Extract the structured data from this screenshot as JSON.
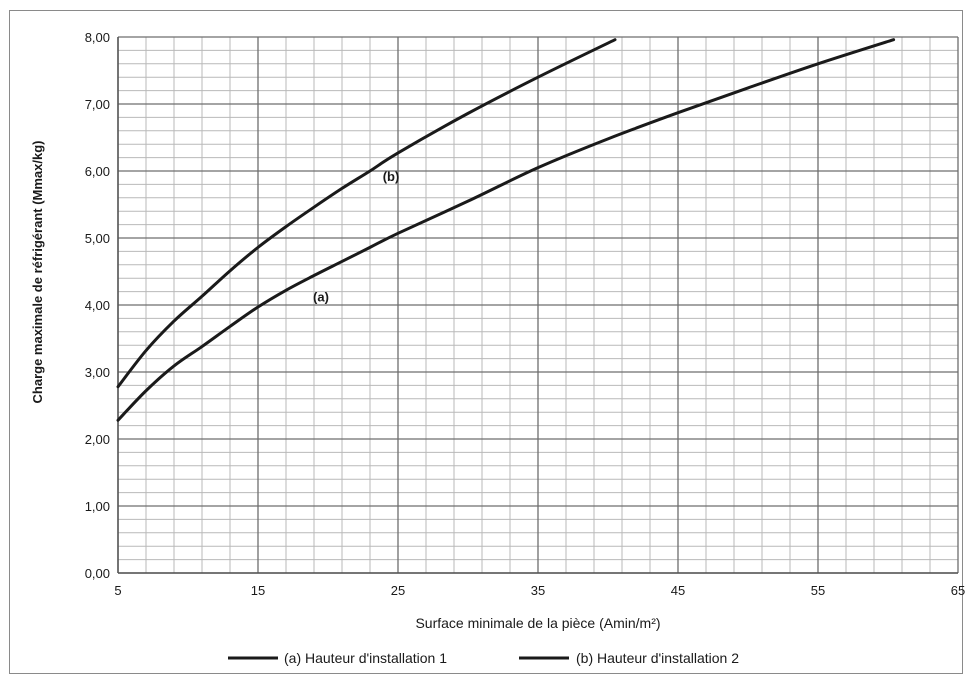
{
  "chart_data": {
    "type": "line",
    "title": "",
    "xlabel": "Surface minimale de la pièce (Amin/m²)",
    "ylabel": "Charge maximale de réfrigérant (Mmax/kg)",
    "xlim": [
      5,
      65
    ],
    "ylim": [
      0,
      8
    ],
    "x_ticks": [
      5,
      15,
      25,
      35,
      45,
      55,
      65
    ],
    "x_tick_labels": [
      "5",
      "15",
      "25",
      "35",
      "45",
      "55",
      "65"
    ],
    "y_ticks": [
      0,
      1,
      2,
      3,
      4,
      5,
      6,
      7,
      8
    ],
    "y_tick_labels": [
      "0,00",
      "1,00",
      "2,00",
      "3,00",
      "4,00",
      "5,00",
      "6,00",
      "7,00",
      "8,00"
    ],
    "grid": true,
    "legend_position": "bottom-center",
    "line_color": "#1a1a1a",
    "series": [
      {
        "name": "(a) Hauteur d'installation 1",
        "annotation": "(a)",
        "x": [
          5,
          7,
          9,
          11,
          13,
          15,
          17,
          19,
          21,
          23,
          25,
          30,
          35,
          40,
          45,
          50,
          55,
          60.4
        ],
        "y": [
          2.28,
          2.72,
          3.09,
          3.38,
          3.68,
          3.97,
          4.22,
          4.44,
          4.65,
          4.86,
          5.07,
          5.55,
          6.05,
          6.48,
          6.87,
          7.24,
          7.6,
          7.96
        ]
      },
      {
        "name": "(b) Hauteur d'installation 2",
        "annotation": "(b)",
        "x": [
          5,
          7,
          9,
          11,
          13,
          15,
          17,
          19,
          21,
          23,
          25,
          30,
          35,
          40.5
        ],
        "y": [
          2.78,
          3.32,
          3.76,
          4.13,
          4.51,
          4.86,
          5.17,
          5.46,
          5.74,
          6.0,
          6.27,
          6.86,
          7.4,
          7.96
        ]
      }
    ]
  }
}
